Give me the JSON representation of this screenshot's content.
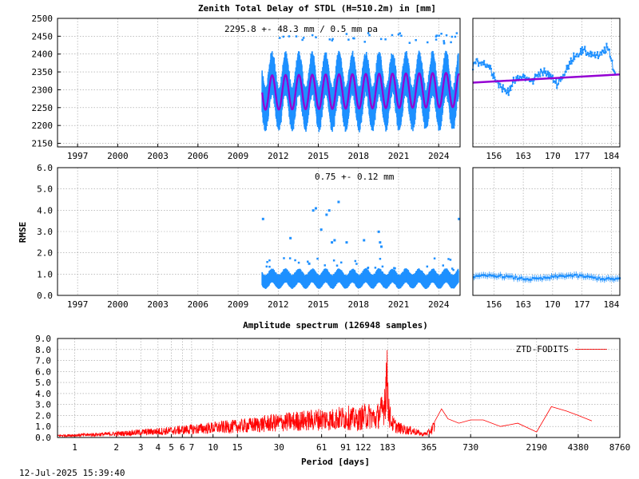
{
  "colors": {
    "data_blue": "#1e90ff",
    "fit_purple": "#9400d3",
    "spectrum_red": "#ff0000",
    "grid": "#9a9a9a",
    "frame": "#000000"
  },
  "footer": {
    "timestamp": "12-Jul-2025 15:39:40"
  },
  "chart_data": [
    {
      "id": "ztd_timeseries",
      "type": "scatter",
      "title": "Zenith Total Delay of STDL (H=510.2m) in [mm]",
      "annotation": "2295.8 +-  48.3 mm /  0.5 mm pa",
      "xlabel": "",
      "ylabel": "",
      "xlim": [
        1995.5,
        2025.6
      ],
      "ylim": [
        2140,
        2500
      ],
      "x_ticks": [
        "1997",
        "2000",
        "2003",
        "2006",
        "2009",
        "2012",
        "2015",
        "2018",
        "2021",
        "2024"
      ],
      "y_ticks": [
        "2150",
        "2200",
        "2250",
        "2300",
        "2350",
        "2400",
        "2450",
        "2500"
      ],
      "grid": true,
      "data_start": 2010.8,
      "data_end": 2025.5,
      "series": [
        {
          "name": "",
          "style": "points",
          "mean": 2295.8,
          "annual_amplitude": 48.3,
          "scatter_range": [
            2150,
            2460
          ]
        },
        {
          "name": "",
          "style": "fitted-annual-model",
          "mean": 2295.8,
          "amplitude": 48.3,
          "trend_per_year": 0.5
        }
      ]
    },
    {
      "id": "ztd_zoom",
      "type": "scatter",
      "title": "",
      "xlim": [
        151,
        186
      ],
      "ylim": [
        2140,
        2500
      ],
      "x_ticks": [
        "156",
        "163",
        "170",
        "177",
        "184"
      ],
      "grid": true,
      "series": [
        {
          "name": "",
          "style": "points",
          "x": [
            151,
            153,
            155,
            157,
            159,
            161,
            163,
            165,
            167,
            169,
            171,
            173,
            175,
            177,
            179,
            181,
            183,
            185
          ],
          "y": [
            2372,
            2380,
            2365,
            2318,
            2293,
            2325,
            2338,
            2322,
            2352,
            2343,
            2318,
            2348,
            2395,
            2408,
            2402,
            2392,
            2420,
            2340
          ]
        },
        {
          "name": "",
          "style": "trend-line",
          "x": [
            151,
            186
          ],
          "y": [
            2320,
            2343
          ]
        }
      ]
    },
    {
      "id": "rmse_timeseries",
      "type": "scatter",
      "title": "",
      "annotation": "0.75 +-  0.12 mm",
      "xlabel": "",
      "ylabel": "RMSE",
      "xlim": [
        1995.5,
        2025.6
      ],
      "ylim": [
        0.0,
        6.0
      ],
      "x_ticks": [
        "1997",
        "2000",
        "2003",
        "2006",
        "2009",
        "2012",
        "2015",
        "2018",
        "2021",
        "2024"
      ],
      "y_ticks": [
        "0.0",
        "1.0",
        "2.0",
        "3.0",
        "4.0",
        "5.0",
        "6.0"
      ],
      "grid": true,
      "data_start": 2010.8,
      "data_end": 2025.5,
      "series": [
        {
          "name": "",
          "style": "points",
          "mean": 0.75,
          "std": 0.12,
          "outliers": [
            {
              "x": 2010.85,
              "y": 3.6
            },
            {
              "x": 2012.9,
              "y": 2.7
            },
            {
              "x": 2014.3,
              "y": 1.5
            },
            {
              "x": 2014.6,
              "y": 4.0
            },
            {
              "x": 2014.8,
              "y": 4.1
            },
            {
              "x": 2015.2,
              "y": 3.1
            },
            {
              "x": 2015.6,
              "y": 3.8
            },
            {
              "x": 2015.8,
              "y": 4.0
            },
            {
              "x": 2016.0,
              "y": 2.5
            },
            {
              "x": 2016.2,
              "y": 2.6
            },
            {
              "x": 2016.5,
              "y": 4.4
            },
            {
              "x": 2017.1,
              "y": 2.5
            },
            {
              "x": 2018.4,
              "y": 2.6
            },
            {
              "x": 2019.5,
              "y": 3.0
            },
            {
              "x": 2019.6,
              "y": 2.5
            },
            {
              "x": 2019.7,
              "y": 2.3
            },
            {
              "x": 2025.5,
              "y": 3.6
            }
          ]
        }
      ]
    },
    {
      "id": "rmse_zoom",
      "type": "scatter",
      "title": "",
      "xlim": [
        151,
        186
      ],
      "ylim": [
        0.0,
        6.0
      ],
      "x_ticks": [
        "156",
        "163",
        "170",
        "177",
        "184"
      ],
      "grid": true,
      "series": [
        {
          "name": "",
          "style": "points-with-errorbars",
          "mean": 0.85,
          "range": [
            0.7,
            1.0
          ]
        }
      ]
    },
    {
      "id": "amplitude_spectrum",
      "type": "line",
      "title": "Amplitude spectrum (126948 samples)",
      "xlabel": "Period [days]",
      "ylabel": "",
      "x_scale": "log",
      "xlim": [
        0.75,
        8760
      ],
      "ylim": [
        0.0,
        9.0
      ],
      "x_ticks": [
        "1",
        "2",
        "3",
        "4",
        "5",
        "6",
        "7",
        "10",
        "15",
        "30",
        "61",
        "91",
        "122",
        "183",
        "365",
        "730",
        "2190",
        "4380",
        "8760"
      ],
      "y_ticks": [
        "0.0",
        "1.0",
        "2.0",
        "3.0",
        "4.0",
        "5.0",
        "6.0",
        "7.0",
        "8.0",
        "9.0"
      ],
      "grid": true,
      "legend_position": "top-right",
      "series": [
        {
          "name": "ZTD-FODITS",
          "x": [
            0.75,
            1,
            2,
            3,
            5,
            7,
            10,
            15,
            20,
            25,
            30,
            40,
            50,
            61,
            70,
            91,
            100,
            110,
            122,
            140,
            150,
            160,
            170,
            175,
            180,
            183,
            186,
            190,
            200,
            220,
            250,
            280,
            300,
            330,
            365,
            400,
            450,
            500,
            600,
            730,
            900,
            1200,
            1600,
            2190,
            2800,
            3600,
            4380,
            5500
          ],
          "y": [
            0.25,
            0.3,
            0.5,
            0.7,
            0.9,
            1.1,
            1.3,
            1.5,
            1.7,
            1.9,
            2.0,
            2.2,
            2.3,
            2.5,
            2.4,
            2.7,
            2.6,
            2.3,
            2.8,
            2.9,
            2.4,
            3.3,
            3.6,
            5.5,
            8.1,
            6.8,
            4.5,
            2.8,
            1.8,
            1.3,
            1.0,
            0.9,
            0.7,
            0.4,
            0.7,
            1.5,
            2.6,
            1.7,
            1.3,
            1.6,
            1.6,
            1.0,
            1.3,
            0.5,
            2.8,
            2.4,
            2.0,
            1.5
          ]
        }
      ]
    }
  ]
}
